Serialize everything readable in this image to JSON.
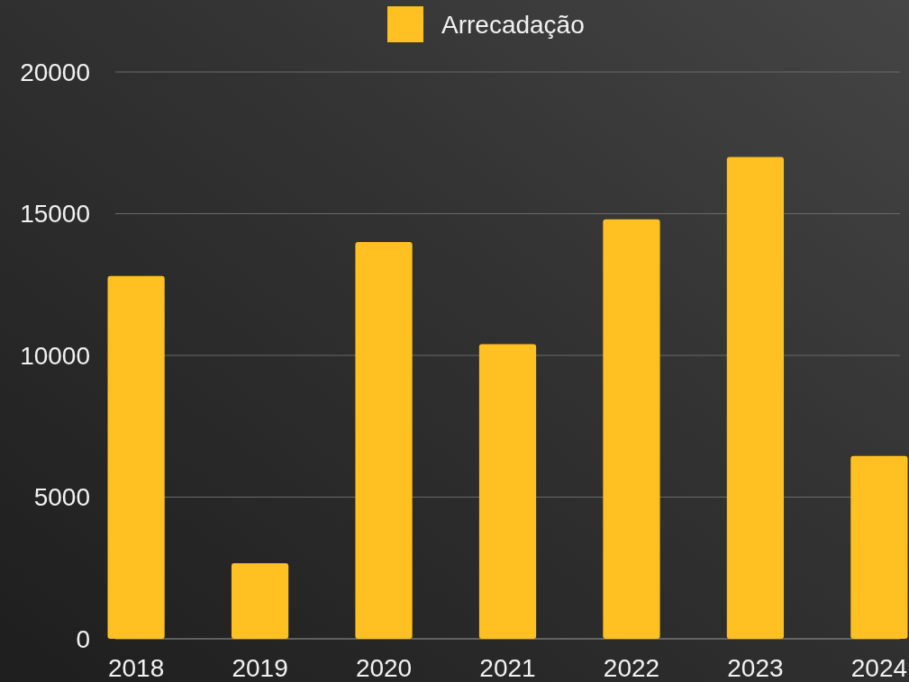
{
  "chart_data": {
    "type": "bar",
    "categories": [
      "2018",
      "2019",
      "2020",
      "2021",
      "2022",
      "2023",
      "2024"
    ],
    "series": [
      {
        "name": "Arrecadação",
        "color": "#ffc121",
        "values": [
          12800,
          2670,
          14000,
          10400,
          14800,
          17000,
          6450
        ]
      }
    ],
    "ylim": [
      0,
      20000
    ],
    "yticks": [
      0,
      5000,
      10000,
      15000,
      20000
    ],
    "grid": "y",
    "legend": "top"
  }
}
